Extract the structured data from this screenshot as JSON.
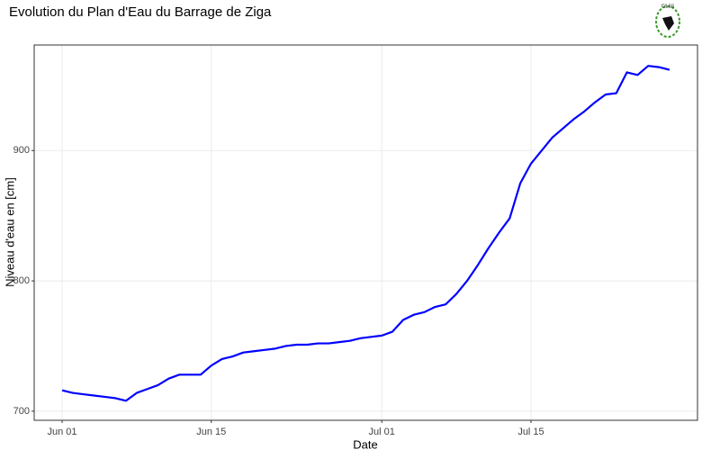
{
  "chart_data": {
    "type": "line",
    "title": "Evolution du Plan d'Eau du Barrage de Ziga",
    "logo": "CILSS",
    "x_label": "Date",
    "y_label": "Niveau d'eau en [cm]",
    "categories": [
      "Jun 01",
      null,
      null,
      null,
      null,
      null,
      null,
      null,
      null,
      null,
      null,
      null,
      null,
      null,
      "Jun 15",
      null,
      null,
      null,
      null,
      null,
      null,
      null,
      null,
      null,
      null,
      null,
      null,
      null,
      null,
      null,
      "Jul 01",
      null,
      null,
      null,
      null,
      null,
      null,
      null,
      null,
      null,
      null,
      null,
      null,
      null,
      "Jul 15",
      null,
      null,
      null,
      null,
      null,
      null,
      null,
      null,
      null,
      null,
      null,
      null,
      null
    ],
    "values": [
      716,
      714,
      713,
      712,
      711,
      710,
      708,
      714,
      717,
      720,
      725,
      728,
      728,
      728,
      735,
      740,
      742,
      745,
      746,
      747,
      748,
      750,
      751,
      751,
      752,
      752,
      753,
      754,
      756,
      757,
      758,
      761,
      770,
      774,
      776,
      780,
      782,
      790,
      800,
      812,
      825,
      837,
      848,
      875,
      890,
      900,
      910,
      917,
      924,
      930,
      937,
      943,
      944,
      960,
      958,
      965,
      964,
      962
    ],
    "color": "#0000ff",
    "ylim": [
      693,
      981
    ],
    "yticks": [
      700,
      800,
      900
    ],
    "grid": true
  }
}
